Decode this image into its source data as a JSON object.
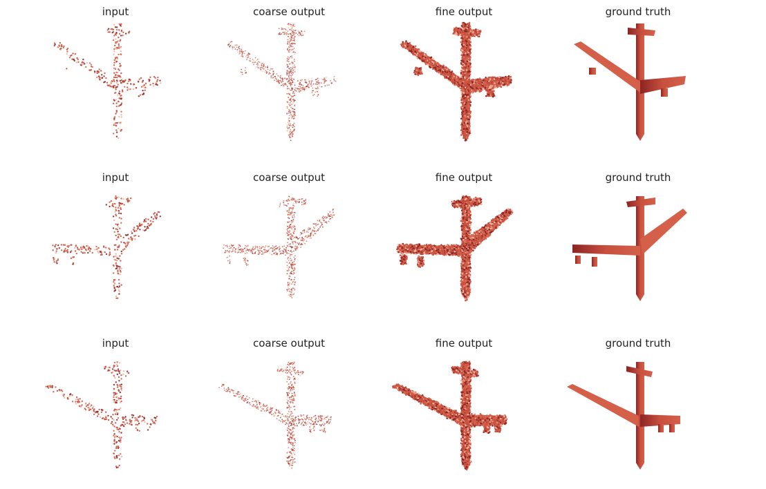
{
  "figure": {
    "columns": [
      {
        "key": "input",
        "title": "input",
        "style": "sparse-points"
      },
      {
        "key": "coarse",
        "title": "coarse output",
        "style": "dense-points"
      },
      {
        "key": "fine",
        "title": "fine output",
        "style": "solid-scatter"
      },
      {
        "key": "gt",
        "title": "ground truth",
        "style": "solid"
      }
    ],
    "rows": [
      {
        "titles": [
          "input",
          "coarse output",
          "fine output",
          "ground truth"
        ],
        "view": "wing-left-up"
      },
      {
        "titles": [
          "input",
          "coarse output",
          "fine output",
          "ground truth"
        ],
        "view": "wing-right-up"
      },
      {
        "titles": [
          "input",
          "coarse output",
          "fine output",
          "ground truth"
        ],
        "view": "wing-left-up-tilted"
      }
    ],
    "colors": {
      "light": "#f0b4a0",
      "mid": "#d4604a",
      "main": "#c8503e",
      "dark": "#8b2424"
    }
  }
}
